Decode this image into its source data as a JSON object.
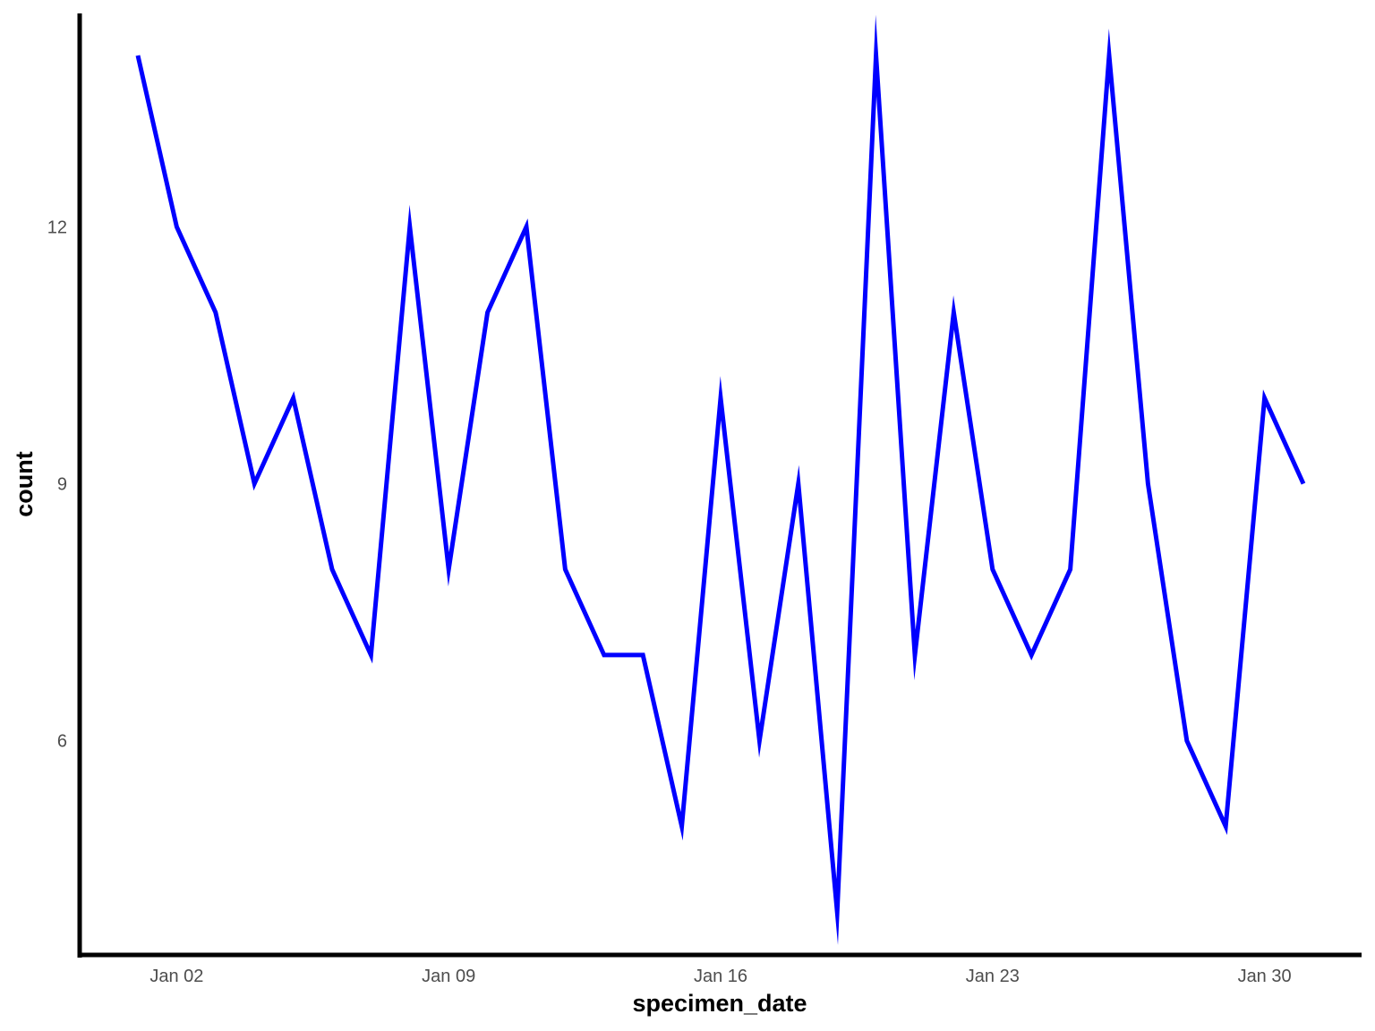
{
  "chart_data": {
    "type": "line",
    "xlabel": "specimen_date",
    "ylabel": "count",
    "x": [
      "2021-01-01",
      "2021-01-02",
      "2021-01-03",
      "2021-01-04",
      "2021-01-05",
      "2021-01-06",
      "2021-01-07",
      "2021-01-08",
      "2021-01-09",
      "2021-01-10",
      "2021-01-11",
      "2021-01-12",
      "2021-01-13",
      "2021-01-14",
      "2021-01-15",
      "2021-01-16",
      "2021-01-17",
      "2021-01-18",
      "2021-01-19",
      "2021-01-20",
      "2021-01-21",
      "2021-01-22",
      "2021-01-23",
      "2021-01-24",
      "2021-01-25",
      "2021-01-26",
      "2021-01-27",
      "2021-01-28",
      "2021-01-29",
      "2021-01-30",
      "2021-01-31"
    ],
    "series": [
      {
        "color": "#0000ff",
        "values": [
          14,
          12,
          11,
          9,
          10,
          8,
          7,
          12,
          8,
          11,
          12,
          8,
          7,
          7,
          5,
          10,
          6,
          9,
          4,
          14,
          7,
          11,
          8,
          7,
          8,
          14,
          9,
          6,
          5,
          10,
          9
        ]
      }
    ],
    "x_ticks": [
      {
        "date": "2021-01-02",
        "label": "Jan 02"
      },
      {
        "date": "2021-01-09",
        "label": "Jan 09"
      },
      {
        "date": "2021-01-16",
        "label": "Jan 16"
      },
      {
        "date": "2021-01-23",
        "label": "Jan 23"
      },
      {
        "date": "2021-01-30",
        "label": "Jan 30"
      }
    ],
    "y_ticks": [
      6,
      9,
      12
    ],
    "xlim": [
      "2021-01-01",
      "2021-01-31"
    ],
    "ylim": [
      3.5,
      14.5
    ],
    "grid": false,
    "legend": "none",
    "axis_color": "#000000",
    "tick_label_color": "#4d4d4d"
  }
}
